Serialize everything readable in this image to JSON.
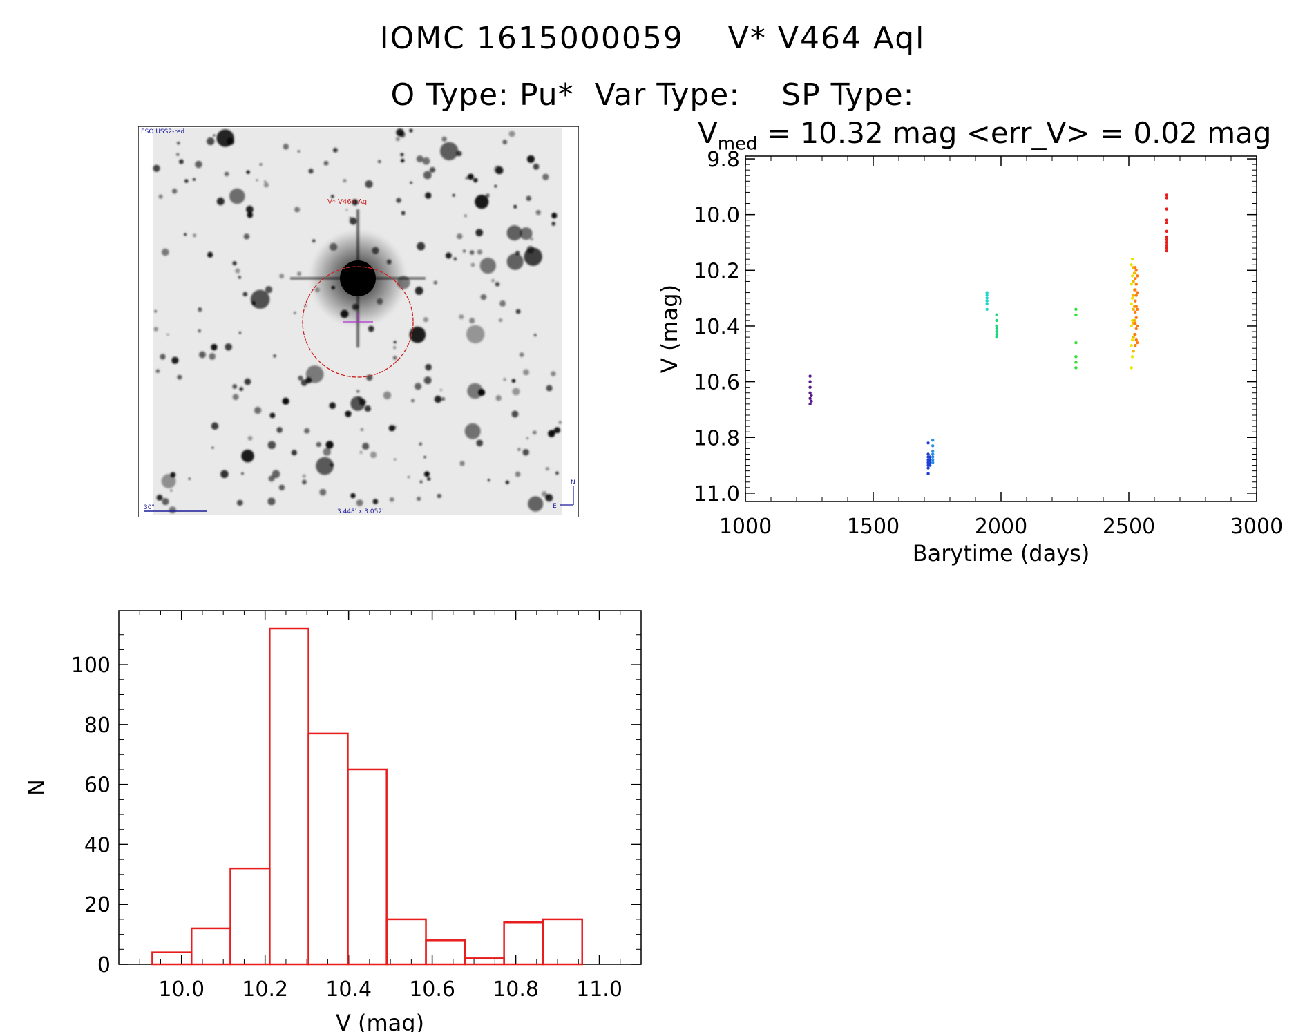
{
  "header": {
    "title": "IOMC 1615000059    V* V464 Aql",
    "subtitle": "O Type: Pu*  Var Type:    SP Type:"
  },
  "stats": {
    "vmed_symbol": "V",
    "vmed_subscript": "med",
    "text": " = 10.32 mag <err_V> = 0.02 mag"
  },
  "sky_image": {
    "survey_label": "ESO USS2-red",
    "target_label": "V* V464 Aql",
    "scale_label": "30\"",
    "fov_label": "3.448' x 3.052'",
    "compass_n": "N",
    "compass_e": "E",
    "colors": {
      "circle": "#cc2222",
      "cross": "#aa33cc",
      "labels_blue": "#1a1a99"
    }
  },
  "chart_data": [
    {
      "type": "scatter",
      "name": "light-curve",
      "xlabel": "Barytime (days)",
      "ylabel": "V (mag)",
      "xlim": [
        1000,
        3000
      ],
      "ylim": [
        11.03,
        9.79
      ],
      "y_inverted": true,
      "x_ticks": [
        1000,
        1500,
        2000,
        2500,
        3000
      ],
      "x_tick_labels": [
        "1000",
        "1500",
        "2000",
        "2500",
        "3000"
      ],
      "y_ticks": [
        9.8,
        10.0,
        10.2,
        10.4,
        10.6,
        10.8,
        11.0
      ],
      "y_tick_labels": [
        "9.8",
        "10.0",
        "10.2",
        "10.4",
        "10.6",
        "10.8",
        "11.0"
      ],
      "groups": [
        {
          "color": "#5a1a8c",
          "points": [
            [
              1253,
              10.58
            ],
            [
              1253,
              10.6
            ],
            [
              1253,
              10.62
            ],
            [
              1253,
              10.64
            ],
            [
              1253,
              10.66
            ],
            [
              1253,
              10.68
            ],
            [
              1258,
              10.65
            ],
            [
              1258,
              10.67
            ]
          ]
        },
        {
          "color": "#1f3fd6",
          "points": [
            [
              1715,
              10.82
            ],
            [
              1715,
              10.86
            ],
            [
              1715,
              10.87
            ],
            [
              1715,
              10.88
            ],
            [
              1715,
              10.89
            ],
            [
              1715,
              10.9
            ],
            [
              1715,
              10.91
            ],
            [
              1715,
              10.93
            ],
            [
              1722,
              10.87
            ],
            [
              1722,
              10.88
            ],
            [
              1722,
              10.89
            ],
            [
              1722,
              10.9
            ]
          ]
        },
        {
          "color": "#2a8fe0",
          "points": [
            [
              1733,
              10.81
            ],
            [
              1733,
              10.83
            ],
            [
              1733,
              10.85
            ],
            [
              1733,
              10.86
            ],
            [
              1733,
              10.87
            ],
            [
              1733,
              10.88
            ],
            [
              1733,
              10.89
            ]
          ]
        },
        {
          "color": "#20d6c8",
          "points": [
            [
              1945,
              10.28
            ],
            [
              1945,
              10.29
            ],
            [
              1945,
              10.3
            ],
            [
              1945,
              10.31
            ],
            [
              1945,
              10.32
            ],
            [
              1945,
              10.34
            ]
          ]
        },
        {
          "color": "#20d67a",
          "points": [
            [
              1983,
              10.36
            ],
            [
              1983,
              10.38
            ],
            [
              1983,
              10.4
            ],
            [
              1983,
              10.41
            ],
            [
              1983,
              10.42
            ],
            [
              1983,
              10.43
            ],
            [
              1983,
              10.44
            ]
          ]
        },
        {
          "color": "#33e033",
          "points": [
            [
              2293,
              10.34
            ],
            [
              2293,
              10.36
            ],
            [
              2293,
              10.46
            ],
            [
              2293,
              10.51
            ],
            [
              2293,
              10.53
            ],
            [
              2293,
              10.55
            ]
          ]
        },
        {
          "color": "#e8e800",
          "points": [
            [
              2510,
              10.18
            ],
            [
              2510,
              10.25
            ],
            [
              2510,
              10.32
            ],
            [
              2510,
              10.4
            ],
            [
              2510,
              10.47
            ],
            [
              2510,
              10.55
            ],
            [
              2514,
              10.16
            ],
            [
              2514,
              10.22
            ],
            [
              2514,
              10.3
            ],
            [
              2514,
              10.38
            ],
            [
              2514,
              10.45
            ],
            [
              2514,
              10.51
            ]
          ]
        },
        {
          "color": "#f4b400",
          "points": [
            [
              2518,
              10.19
            ],
            [
              2518,
              10.24
            ],
            [
              2518,
              10.29
            ],
            [
              2518,
              10.34
            ],
            [
              2518,
              10.39
            ],
            [
              2518,
              10.44
            ],
            [
              2518,
              10.49
            ],
            [
              2522,
              10.21
            ],
            [
              2522,
              10.27
            ],
            [
              2522,
              10.33
            ],
            [
              2522,
              10.38
            ],
            [
              2522,
              10.43
            ]
          ]
        },
        {
          "color": "#ff7a10",
          "points": [
            [
              2525,
              10.19
            ],
            [
              2525,
              10.23
            ],
            [
              2525,
              10.27
            ],
            [
              2525,
              10.31
            ],
            [
              2525,
              10.35
            ],
            [
              2525,
              10.39
            ],
            [
              2525,
              10.43
            ],
            [
              2525,
              10.47
            ],
            [
              2529,
              10.2
            ],
            [
              2529,
              10.25
            ],
            [
              2529,
              10.29
            ],
            [
              2529,
              10.33
            ],
            [
              2529,
              10.37
            ],
            [
              2529,
              10.41
            ],
            [
              2529,
              10.45
            ],
            [
              2533,
              10.22
            ],
            [
              2533,
              10.28
            ],
            [
              2533,
              10.34
            ],
            [
              2533,
              10.4
            ],
            [
              2533,
              10.46
            ]
          ]
        },
        {
          "color": "#e81e1e",
          "points": [
            [
              2648,
              9.93
            ],
            [
              2648,
              9.94
            ],
            [
              2648,
              9.98
            ],
            [
              2648,
              10.02
            ],
            [
              2648,
              10.03
            ],
            [
              2648,
              10.06
            ],
            [
              2648,
              10.08
            ],
            [
              2648,
              10.09
            ],
            [
              2648,
              10.1
            ],
            [
              2648,
              10.11
            ],
            [
              2648,
              10.12
            ],
            [
              2648,
              10.13
            ]
          ]
        }
      ]
    },
    {
      "type": "bar",
      "name": "histogram",
      "xlabel": "V (mag)",
      "ylabel": "N",
      "xlim": [
        9.85,
        11.1
      ],
      "ylim": [
        0,
        118
      ],
      "x_ticks": [
        10.0,
        10.2,
        10.4,
        10.6,
        10.8,
        11.0
      ],
      "x_tick_labels": [
        "10.0",
        "10.2",
        "10.4",
        "10.6",
        "10.8",
        "11.0"
      ],
      "y_ticks": [
        0,
        20,
        40,
        60,
        80,
        100
      ],
      "y_tick_labels": [
        "0",
        "20",
        "40",
        "60",
        "80",
        "100"
      ],
      "bin_edges": [
        9.93,
        10.024,
        10.117,
        10.211,
        10.304,
        10.398,
        10.491,
        10.585,
        10.678,
        10.772,
        10.865,
        10.959
      ],
      "values": [
        4,
        12,
        32,
        112,
        77,
        65,
        15,
        8,
        2,
        14,
        15
      ],
      "color": "#e81e1e"
    }
  ]
}
